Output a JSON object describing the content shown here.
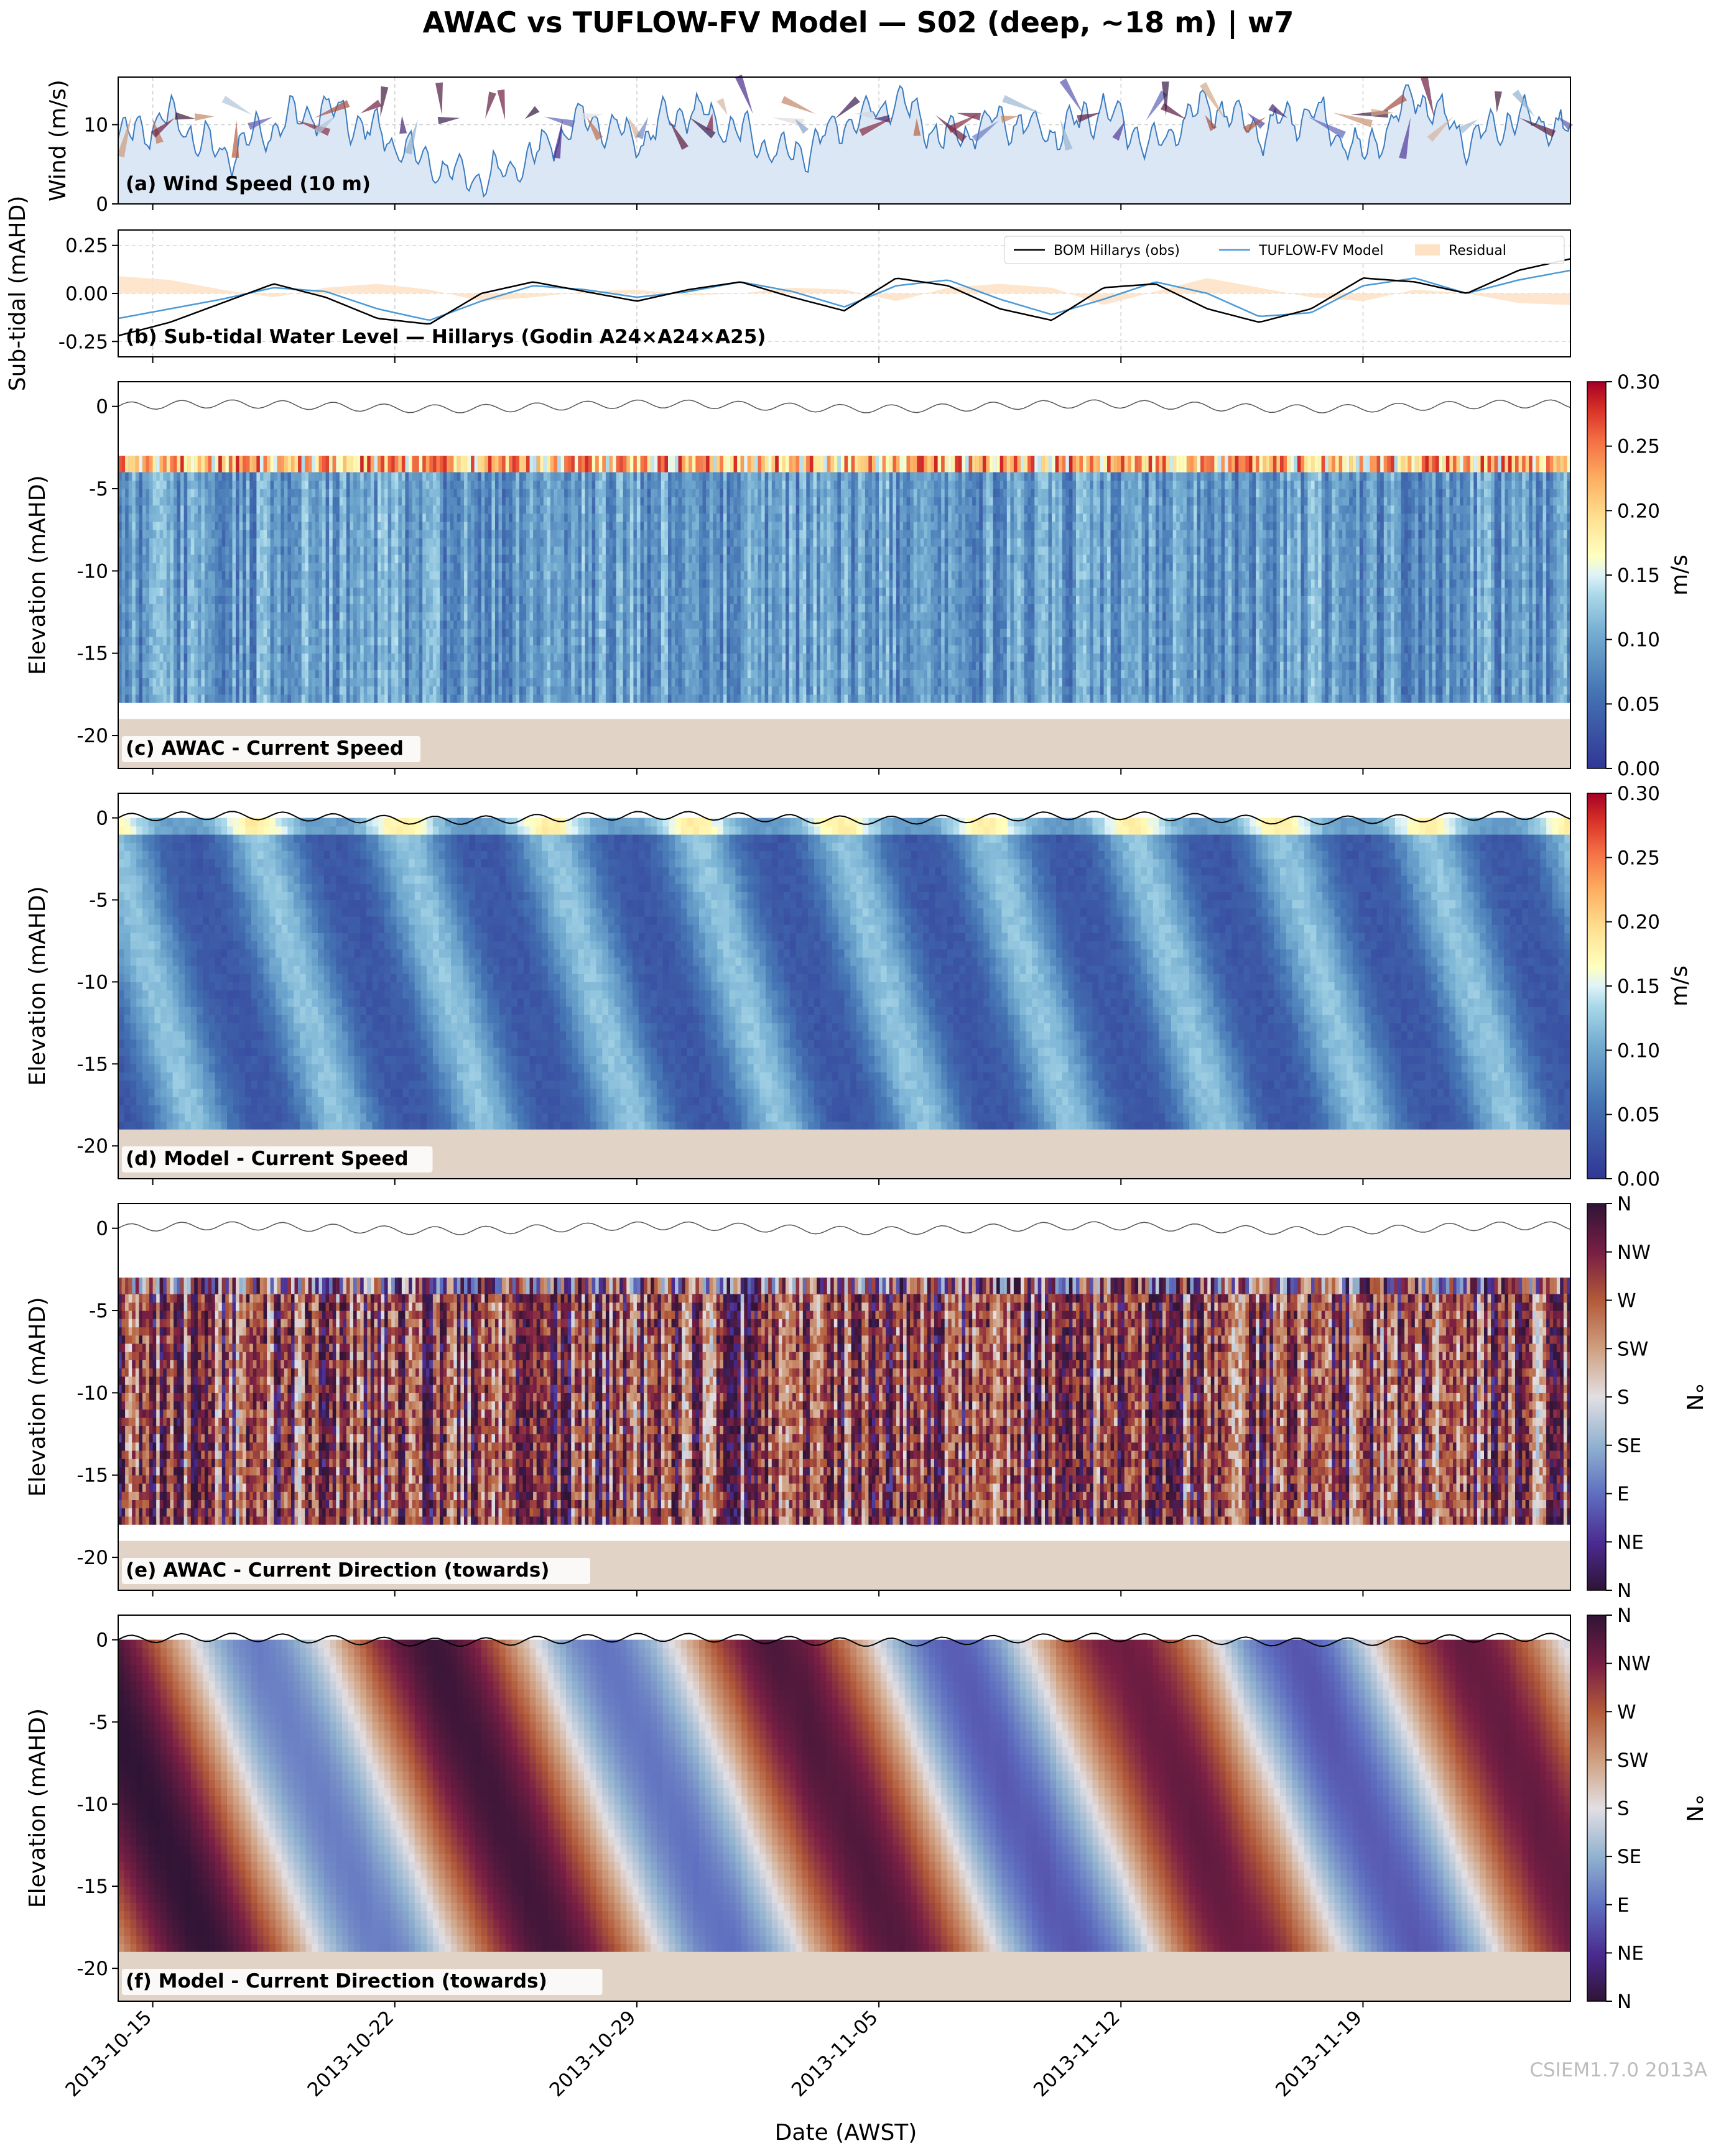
{
  "figure": {
    "title": "AWAC vs TUFLOW-FV Model — S02 (deep, ~18 m) | w7",
    "xlabel": "Date (AWST)",
    "watermark": "CSIEM1.7.0 2013A",
    "date_ticks": [
      "2013-10-15",
      "2013-10-22",
      "2013-10-29",
      "2013-11-05",
      "2013-11-12",
      "2013-11-19"
    ]
  },
  "colors": {
    "wind_line": "#3a7bbf",
    "wind_fill": "#dce7f5",
    "obs_line": "#000000",
    "model_line": "#4a9ad8",
    "residual_fill": "#fde2c4",
    "seabed": "#e1d3c6",
    "surface_line": "#555555"
  },
  "chart_data": [
    {
      "panel": "a",
      "type": "area",
      "title": "(a) Wind Speed (10 m)",
      "ylabel": "Wind (m/s)",
      "yticks": [
        "0",
        "10"
      ],
      "ylim": [
        0,
        16
      ],
      "xlim": [
        "2013-10-14",
        "2013-11-25"
      ],
      "x_days_since_2013_10_14": [
        0,
        1.5,
        3,
        4.5,
        6,
        7.5,
        9,
        10.5,
        12,
        13.5,
        15,
        16.5,
        18,
        19.5,
        21,
        22.5,
        24,
        25.5,
        27,
        28.5,
        30,
        31.5,
        33,
        34.5,
        36,
        37.5,
        39,
        40.5,
        42
      ],
      "values": [
        8,
        11,
        6,
        10,
        12,
        9,
        5,
        3,
        6,
        11,
        8,
        12,
        9,
        6,
        10,
        13,
        8,
        11,
        9,
        12,
        7,
        13,
        9,
        12,
        6,
        14,
        8,
        11,
        9
      ],
      "annotations": "wind direction feather arrows drawn near 11 m/s"
    },
    {
      "panel": "b",
      "type": "line",
      "title": "(b) Sub-tidal Water Level — Hillarys (Godin A24×A24×A25)",
      "ylabel": "Sub-tidal (mAHD)",
      "yticks": [
        "-0.25",
        "0.00",
        "0.25"
      ],
      "ylim": [
        -0.33,
        0.33
      ],
      "legend": [
        "BOM Hillarys (obs)",
        "TUFLOW-FV Model",
        "Residual"
      ],
      "legend_position": "top-right",
      "x_days_since_2013_10_14": [
        0,
        1.5,
        3,
        4.5,
        6,
        7.5,
        9,
        10.5,
        12,
        13.5,
        15,
        16.5,
        18,
        19.5,
        21,
        22.5,
        24,
        25.5,
        27,
        28.5,
        30,
        31.5,
        33,
        34.5,
        36,
        37.5,
        39,
        40.5,
        42
      ],
      "series": [
        {
          "name": "BOM Hillarys (obs)",
          "values": [
            -0.22,
            -0.15,
            -0.05,
            0.05,
            -0.02,
            -0.13,
            -0.16,
            0.0,
            0.06,
            0.01,
            -0.04,
            0.02,
            0.06,
            -0.02,
            -0.09,
            0.08,
            0.04,
            -0.08,
            -0.14,
            0.03,
            0.05,
            -0.08,
            -0.15,
            -0.08,
            0.08,
            0.06,
            0.0,
            0.12,
            0.18
          ]
        },
        {
          "name": "TUFLOW-FV Model",
          "values": [
            -0.13,
            -0.08,
            -0.03,
            0.03,
            0.01,
            -0.08,
            -0.14,
            -0.04,
            0.04,
            0.02,
            -0.02,
            0.01,
            0.06,
            0.01,
            -0.07,
            0.04,
            0.07,
            -0.03,
            -0.11,
            -0.03,
            0.06,
            0.0,
            -0.12,
            -0.1,
            0.04,
            0.08,
            0.0,
            0.07,
            0.12
          ]
        }
      ]
    },
    {
      "panel": "c",
      "type": "heatmap",
      "title": "(c) AWAC - Current Speed",
      "ylabel": "Elevation (mAHD)",
      "yticks": [
        "0",
        "-5",
        "-10",
        "-15",
        "-20"
      ],
      "ylim": [
        -22,
        1.5
      ],
      "data_range_elevation": [
        -18,
        -3
      ],
      "colorbar": {
        "label": "m/s",
        "ticks": [
          "0.00",
          "0.05",
          "0.10",
          "0.15",
          "0.20",
          "0.25",
          "0.30"
        ],
        "range": [
          0,
          0.3
        ],
        "cmap": "RdYlBu_r"
      }
    },
    {
      "panel": "d",
      "type": "heatmap",
      "title": "(d) Model - Current Speed",
      "ylabel": "Elevation (mAHD)",
      "yticks": [
        "0",
        "-5",
        "-10",
        "-15",
        "-20"
      ],
      "ylim": [
        -22,
        1.5
      ],
      "data_range_elevation": [
        -19,
        0
      ],
      "colorbar": {
        "label": "m/s",
        "ticks": [
          "0.00",
          "0.05",
          "0.10",
          "0.15",
          "0.20",
          "0.25",
          "0.30"
        ],
        "range": [
          0,
          0.3
        ],
        "cmap": "RdYlBu_r"
      }
    },
    {
      "panel": "e",
      "type": "heatmap",
      "title": "(e) AWAC - Current Direction (towards)",
      "ylabel": "Elevation (mAHD)",
      "yticks": [
        "0",
        "-5",
        "-10",
        "-15",
        "-20"
      ],
      "ylim": [
        -22,
        1.5
      ],
      "data_range_elevation": [
        -18,
        -3
      ],
      "colorbar": {
        "label": "°N",
        "ticks": [
          "N",
          "NE",
          "E",
          "SE",
          "S",
          "SW",
          "W",
          "NW",
          "N"
        ],
        "range": [
          0,
          360
        ],
        "cmap": "twilight_shifted"
      }
    },
    {
      "panel": "f",
      "type": "heatmap",
      "title": "(f) Model - Current Direction (towards)",
      "ylabel": "Elevation (mAHD)",
      "yticks": [
        "0",
        "-5",
        "-10",
        "-15",
        "-20"
      ],
      "ylim": [
        -22,
        1.5
      ],
      "data_range_elevation": [
        -19,
        0
      ],
      "colorbar": {
        "label": "°N",
        "ticks": [
          "N",
          "NE",
          "E",
          "SE",
          "S",
          "SW",
          "W",
          "NW",
          "N"
        ],
        "range": [
          0,
          360
        ],
        "cmap": "twilight_shifted"
      }
    }
  ]
}
